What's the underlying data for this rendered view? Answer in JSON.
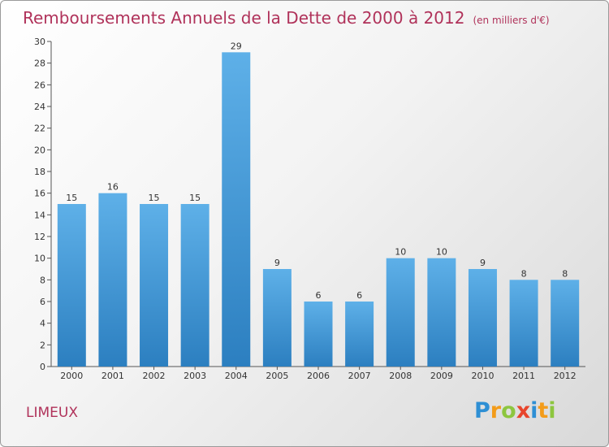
{
  "chart_data": {
    "type": "bar",
    "title": "Remboursements Annuels de la Dette de 2000 à 2012",
    "unit_note": "(en milliers d'€)",
    "categories": [
      "2000",
      "2001",
      "2002",
      "2003",
      "2004",
      "2005",
      "2006",
      "2007",
      "2008",
      "2009",
      "2010",
      "2011",
      "2012"
    ],
    "values": [
      15,
      16,
      15,
      15,
      29,
      9,
      6,
      6,
      10,
      10,
      9,
      8,
      8
    ],
    "data_labels": [
      "15",
      "16",
      "15",
      "15",
      "29",
      "9",
      "6",
      "6",
      "10",
      "10",
      "9",
      "8",
      "8"
    ],
    "ylim": [
      0,
      30
    ],
    "yticks": [
      0,
      2,
      4,
      6,
      8,
      10,
      12,
      14,
      16,
      18,
      20,
      22,
      24,
      26,
      28,
      30
    ],
    "xlabel": "",
    "ylabel": "",
    "grid": false,
    "bar_color": "#3a8fd0"
  },
  "commune": "LIMEUX",
  "logo": {
    "letters": [
      "P",
      "r",
      "o",
      "x",
      "i",
      "t",
      "i"
    ],
    "colors": [
      "#2e8fd4",
      "#f39c1a",
      "#8dc63f",
      "#e8452c",
      "#2e8fd4",
      "#f39c1a",
      "#8dc63f"
    ]
  }
}
